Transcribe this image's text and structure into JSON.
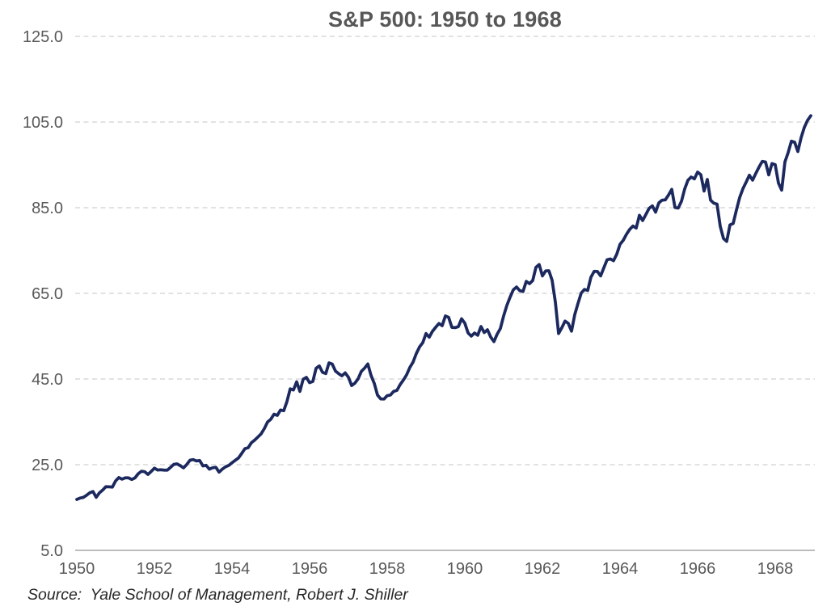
{
  "chart_data": {
    "type": "line",
    "title": "S&P 500: 1950 to 1968",
    "source_note": "Source:  Yale School of Management, Robert J. Shiller",
    "x_axis": {
      "tick_labels": [
        "1950",
        "1952",
        "1954",
        "1956",
        "1958",
        "1960",
        "1962",
        "1964",
        "1966",
        "1968"
      ],
      "start_year": 1950,
      "interval_years": 2
    },
    "y_axis": {
      "tick_labels": [
        "125.0",
        "105.0",
        "85.0",
        "65.0",
        "45.0",
        "25.0",
        "5.0"
      ],
      "min": 5,
      "max": 125
    },
    "grid": "horizontal-dashed",
    "legend": "none",
    "colors": {
      "line": "#1c295e",
      "gridline": "#d9d9d9",
      "axis_line": "#a6a6a6",
      "tick_label": "#595959",
      "title": "#575757",
      "source": "#262626"
    },
    "series": [
      {
        "name": "S&P 500",
        "frequency": "monthly",
        "start": "1950-01",
        "end": "1968-12",
        "values": [
          16.88,
          17.21,
          17.35,
          17.84,
          18.44,
          18.74,
          17.38,
          18.43,
          19.08,
          19.87,
          19.83,
          19.75,
          21.21,
          22.0,
          21.63,
          21.92,
          21.93,
          21.55,
          21.93,
          22.89,
          23.48,
          23.36,
          22.71,
          23.41,
          24.19,
          23.75,
          23.81,
          23.74,
          23.73,
          24.38,
          25.08,
          25.18,
          24.78,
          24.26,
          25.03,
          26.04,
          26.18,
          25.86,
          25.99,
          24.71,
          24.84,
          23.95,
          24.29,
          24.39,
          23.27,
          23.97,
          24.5,
          24.83,
          25.46,
          26.02,
          26.57,
          27.63,
          28.73,
          28.96,
          30.13,
          30.73,
          31.45,
          32.18,
          33.44,
          34.97,
          35.6,
          36.79,
          36.5,
          37.76,
          37.6,
          39.78,
          42.69,
          42.43,
          44.34,
          42.11,
          44.95,
          45.37,
          44.15,
          44.43,
          47.49,
          48.05,
          46.54,
          46.27,
          48.78,
          48.49,
          46.84,
          46.24,
          45.76,
          46.44,
          45.43,
          43.47,
          44.03,
          45.05,
          46.78,
          47.55,
          48.51,
          45.84,
          43.98,
          41.24,
          40.35,
          40.33,
          41.12,
          41.26,
          42.11,
          42.34,
          43.7,
          44.75,
          45.98,
          47.7,
          48.96,
          50.95,
          52.5,
          53.49,
          55.62,
          54.77,
          56.15,
          57.1,
          57.96,
          57.46,
          59.74,
          59.4,
          57.05,
          57.0,
          57.23,
          59.06,
          58.03,
          55.78,
          55.02,
          55.73,
          55.22,
          57.26,
          55.84,
          56.51,
          54.81,
          53.73,
          55.47,
          56.8,
          59.72,
          62.17,
          64.12,
          65.83,
          66.5,
          65.62,
          65.44,
          67.79,
          67.26,
          68.0,
          71.08,
          71.74,
          69.07,
          70.22,
          70.29,
          68.05,
          62.99,
          55.63,
          56.97,
          58.52,
          58.0,
          56.17,
          60.04,
          62.64,
          65.06,
          65.92,
          65.67,
          68.76,
          70.14,
          70.11,
          69.07,
          70.98,
          72.85,
          73.03,
          72.62,
          74.17,
          76.45,
          77.39,
          78.8,
          79.94,
          80.72,
          80.24,
          83.22,
          82.0,
          83.41,
          84.85,
          85.44,
          83.96,
          86.12,
          86.75,
          86.83,
          87.97,
          89.28,
          85.04,
          84.91,
          86.49,
          89.38,
          91.39,
          92.15,
          91.73,
          93.32,
          92.69,
          88.88,
          91.6,
          86.78,
          86.06,
          85.84,
          80.65,
          77.81,
          77.13,
          80.99,
          81.33,
          84.45,
          87.36,
          89.42,
          90.96,
          92.59,
          91.43,
          93.01,
          94.49,
          95.81,
          95.66,
          92.66,
          95.3,
          95.04,
          90.75,
          89.09,
          95.67,
          97.87,
          100.53,
          100.3,
          98.11,
          101.34,
          103.76,
          105.4,
          106.48
        ]
      }
    ]
  }
}
